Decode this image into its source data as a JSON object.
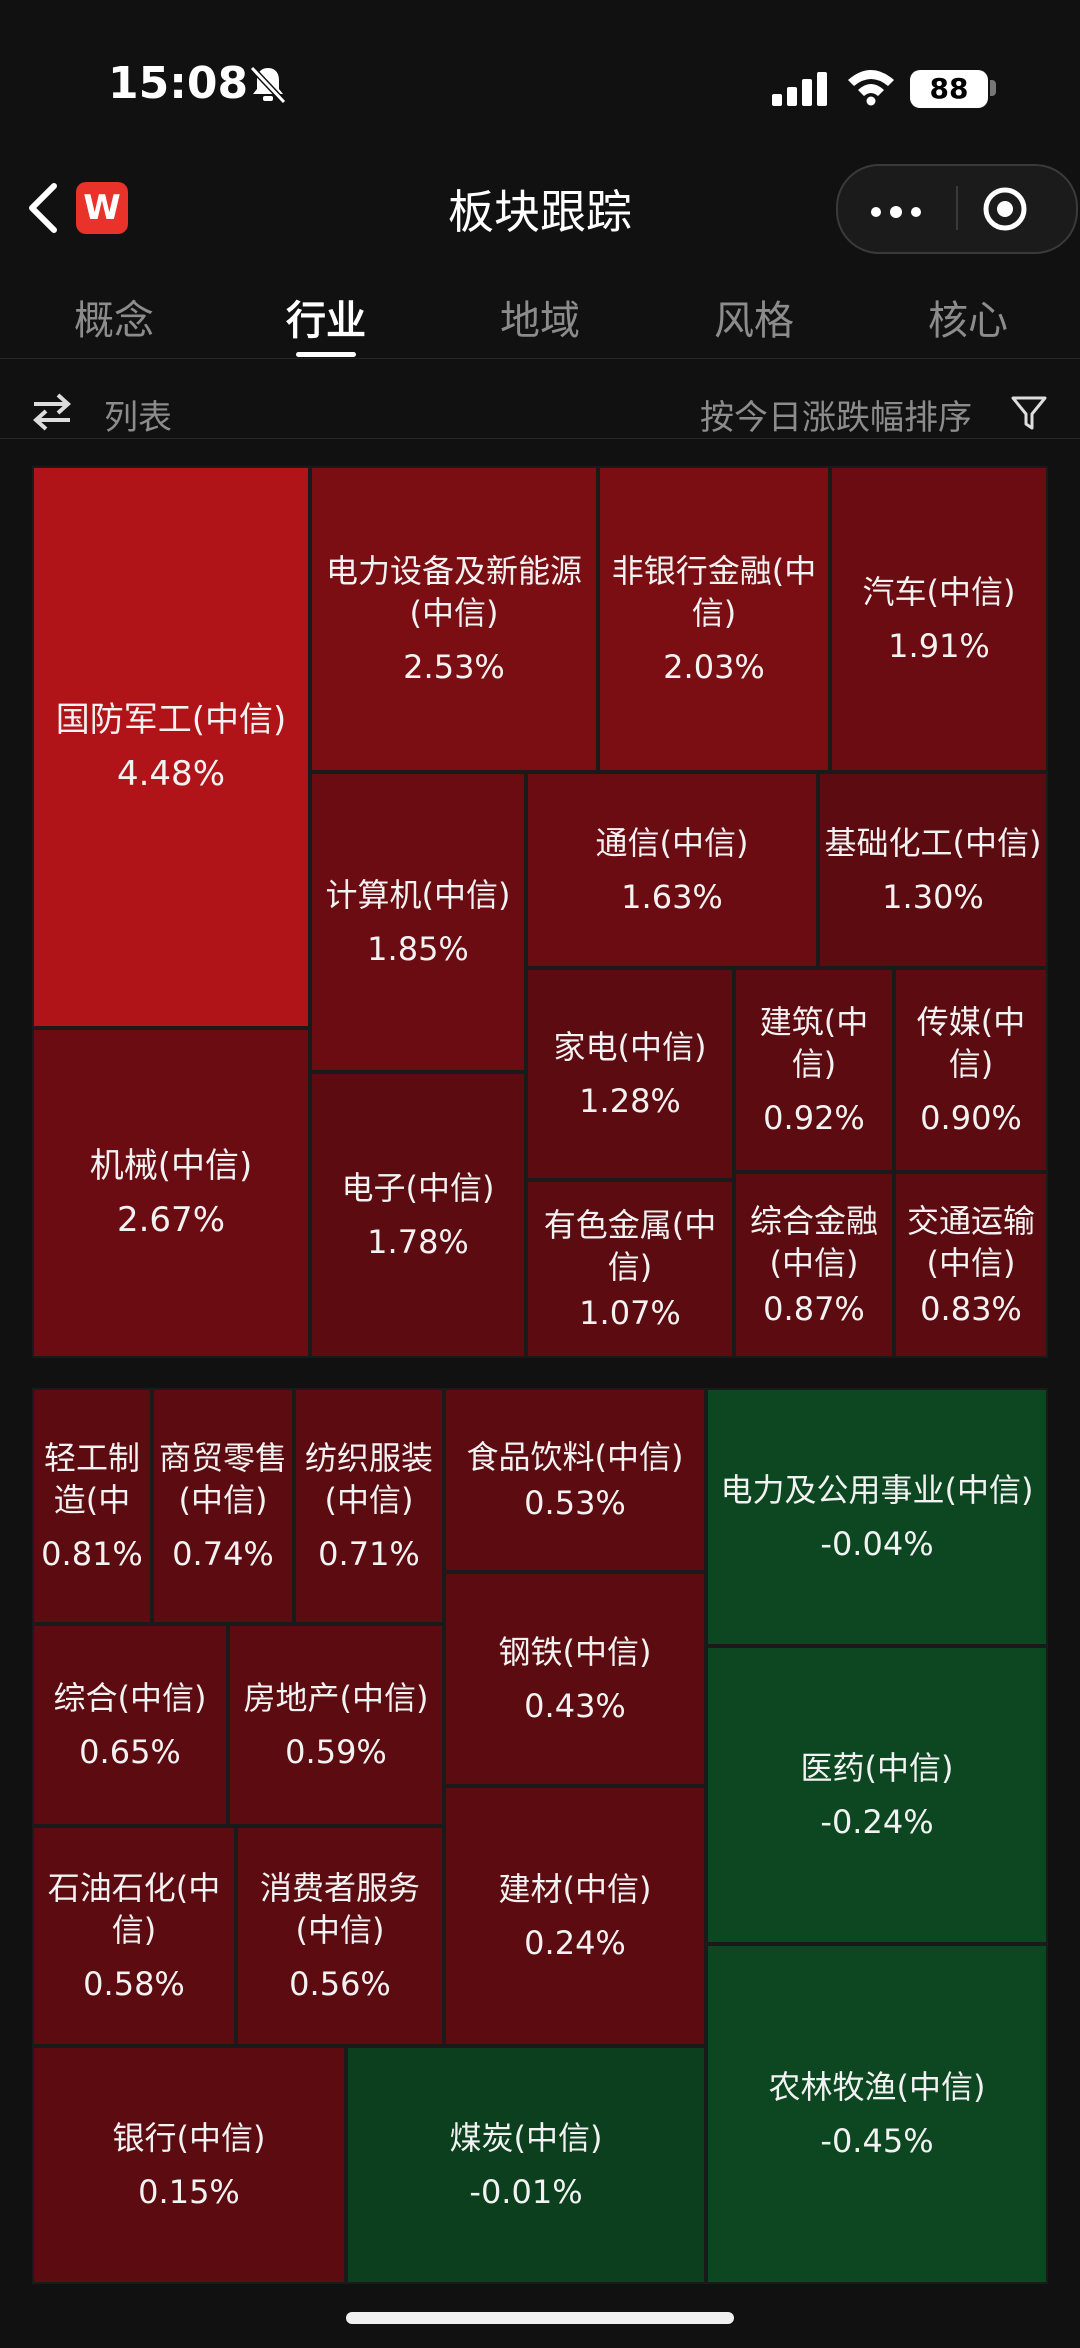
{
  "status": {
    "time": "15:08",
    "battery": "88"
  },
  "nav": {
    "logo": "W",
    "title": "板块跟踪"
  },
  "tabs": [
    "概念",
    "行业",
    "地域",
    "风格",
    "核心"
  ],
  "active_tab": 1,
  "toolbar": {
    "list_label": "列表",
    "sort_label": "按今日涨跌幅排序"
  },
  "colors": {
    "up_strong": "#b01418",
    "up": "#7a0e13",
    "up_mid": "#6a0c12",
    "up_dark": "#5c0b10",
    "down": "#0c4722",
    "down_dark": "#0b3f1e"
  },
  "tiles": [
    {
      "name": "国防军工(中信)",
      "value": "4.48%"
    },
    {
      "name": "电力设备及新能源(中信)",
      "value": "2.53%"
    },
    {
      "name": "非银行金融(中信)",
      "value": "2.03%"
    },
    {
      "name": "汽车(中信)",
      "value": "1.91%"
    },
    {
      "name": "计算机(中信)",
      "value": "1.85%"
    },
    {
      "name": "通信(中信)",
      "value": "1.63%"
    },
    {
      "name": "基础化工(中信)",
      "value": "1.30%"
    },
    {
      "name": "家电(中信)",
      "value": "1.28%"
    },
    {
      "name": "建筑(中信)",
      "value": "0.92%"
    },
    {
      "name": "传媒(中信)",
      "value": "0.90%"
    },
    {
      "name": "机械(中信)",
      "value": "2.67%"
    },
    {
      "name": "电子(中信)",
      "value": "1.78%"
    },
    {
      "name": "有色金属(中信)",
      "value": "1.07%"
    },
    {
      "name": "综合金融(中信)",
      "value": "0.87%"
    },
    {
      "name": "交通运输(中信)",
      "value": "0.83%"
    },
    {
      "name": "轻工制造(中",
      "value": "0.81%"
    },
    {
      "name": "商贸零售(中信)",
      "value": "0.74%"
    },
    {
      "name": "纺织服装(中信)",
      "value": "0.71%"
    },
    {
      "name": "食品饮料(中信)",
      "value": "0.53%"
    },
    {
      "name": "电力及公用事业(中信)",
      "value": "-0.04%"
    },
    {
      "name": "综合(中信)",
      "value": "0.65%"
    },
    {
      "name": "房地产(中信)",
      "value": "0.59%"
    },
    {
      "name": "钢铁(中信)",
      "value": "0.43%"
    },
    {
      "name": "医药(中信)",
      "value": "-0.24%"
    },
    {
      "name": "石油石化(中信)",
      "value": "0.58%"
    },
    {
      "name": "消费者服务(中信)",
      "value": "0.56%"
    },
    {
      "name": "建材(中信)",
      "value": "0.24%"
    },
    {
      "name": "银行(中信)",
      "value": "0.15%"
    },
    {
      "name": "煤炭(中信)",
      "value": "-0.01%"
    },
    {
      "name": "农林牧渔(中信)",
      "value": "-0.45%"
    }
  ]
}
